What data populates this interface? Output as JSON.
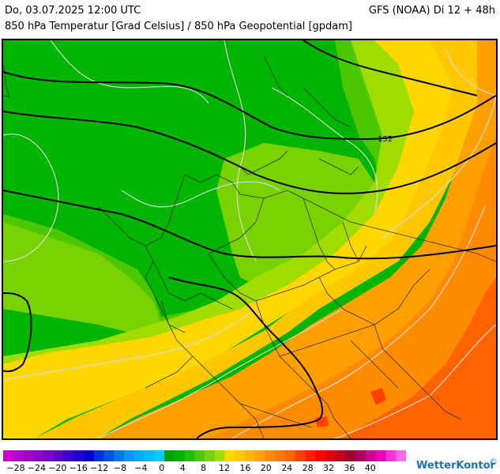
{
  "header": {
    "datetime": "Do, 03.07.2025 12:00 UTC",
    "model": "GFS (NOAA) Di 12 + 48h",
    "parameters": "850 hPa Temperatur [Grad Celsius] / 850 hPa Geopotential [gpdam]"
  },
  "map": {
    "contour_labels": [
      "152"
    ],
    "region": "Mitteleuropa"
  },
  "legend": {
    "colors": [
      "#cc00cc",
      "#b800cc",
      "#a300cc",
      "#8f00cc",
      "#7a00cc",
      "#5c00cc",
      "#3d00cc",
      "#1f00cc",
      "#0000cc",
      "#0033d9",
      "#0055e6",
      "#0077ee",
      "#0099f5",
      "#00aaf8",
      "#00bbfa",
      "#00ccfc",
      "#00a000",
      "#00b400",
      "#20c000",
      "#4cc800",
      "#78d200",
      "#a0dc00",
      "#ffd700",
      "#ffc800",
      "#ffb400",
      "#ffa000",
      "#ff8c00",
      "#ff7800",
      "#ff6400",
      "#ff4000",
      "#ff2000",
      "#ff0000",
      "#e00010",
      "#c00020",
      "#a00030",
      "#b00060",
      "#d00090",
      "#ee00bb",
      "#ff33dd",
      "#ff66ee"
    ],
    "ticks": [
      "−28",
      "−24",
      "−20",
      "−16",
      "−12",
      "−8",
      "−4",
      "0",
      "4",
      "8",
      "12",
      "16",
      "20",
      "24",
      "28",
      "32",
      "36",
      "40"
    ]
  },
  "brand": {
    "name": "WetterKontor",
    "mark": "©"
  }
}
